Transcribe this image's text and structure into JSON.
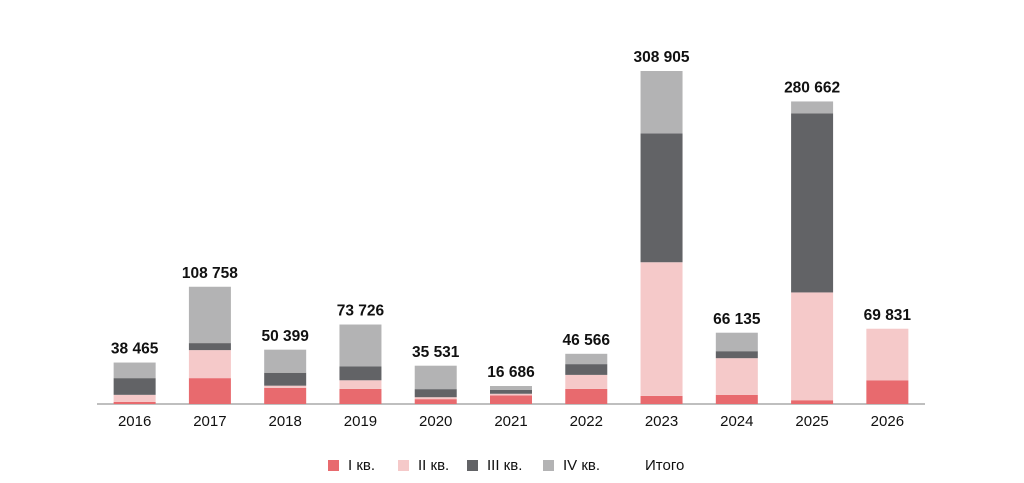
{
  "chart_data": {
    "type": "stacked_bar",
    "categories": [
      "2016",
      "2017",
      "2018",
      "2019",
      "2020",
      "2021",
      "2022",
      "2023",
      "2024",
      "2025",
      "2026"
    ],
    "series": [
      {
        "name": "I кв.",
        "color": "#e86a6e",
        "values": [
          2000,
          24000,
          15000,
          14000,
          4500,
          8000,
          14000,
          7500,
          8500,
          3500,
          22000
        ]
      },
      {
        "name": "II кв.",
        "color": "#f5c9c9",
        "values": [
          6500,
          26000,
          2000,
          8000,
          1800,
          1500,
          13000,
          124000,
          34000,
          100000,
          47831
        ]
      },
      {
        "name": "III кв.",
        "color": "#626366",
        "values": [
          15500,
          6500,
          12000,
          13000,
          7500,
          3500,
          10000,
          119500,
          6500,
          166000,
          0
        ]
      },
      {
        "name": "IV кв.",
        "color": "#b3b3b4",
        "values": [
          14465,
          52258,
          21399,
          38726,
          21731,
          3686,
          9566,
          57905,
          17135,
          11162,
          0
        ]
      }
    ],
    "totals": {
      "name": "Итого",
      "values": [
        38465,
        108758,
        50399,
        73726,
        35531,
        16686,
        46566,
        308905,
        66135,
        280662,
        69831
      ],
      "value_labels": [
        "38 465",
        "108 758",
        "50 399",
        "73 726",
        "35 531",
        "16 686",
        "46 566",
        "308 905",
        "66 135",
        "280 662",
        "69 831"
      ]
    }
  }
}
